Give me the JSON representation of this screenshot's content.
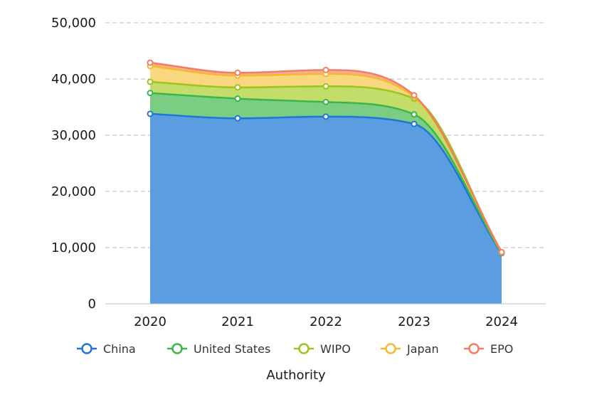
{
  "chart_data": {
    "type": "area",
    "stacked": true,
    "smooth": true,
    "categories": [
      "2020",
      "2021",
      "2022",
      "2023",
      "2024"
    ],
    "series": [
      {
        "name": "China",
        "color": "#1f77d4",
        "fill": "#5b9de0",
        "values": [
          33800,
          33000,
          33300,
          32000,
          9000
        ]
      },
      {
        "name": "United States",
        "color": "#3db54a",
        "fill": "#7ccd84",
        "values": [
          3700,
          3500,
          2600,
          1700,
          50
        ]
      },
      {
        "name": "WIPO",
        "color": "#9cc41c",
        "fill": "#c2dd6a",
        "values": [
          2000,
          2000,
          2800,
          2800,
          50
        ]
      },
      {
        "name": "Japan",
        "color": "#f5b92e",
        "fill": "#f9d77f",
        "values": [
          2800,
          2100,
          2200,
          300,
          50
        ]
      },
      {
        "name": "EPO",
        "color": "#f27d63",
        "fill": "#f7ad9c",
        "values": [
          600,
          500,
          700,
          300,
          50
        ]
      }
    ],
    "ylim": [
      0,
      50000
    ],
    "yticks": [
      "0",
      "10,000",
      "20,000",
      "30,000",
      "40,000",
      "50,000"
    ],
    "ytick_values": [
      0,
      10000,
      20000,
      30000,
      40000,
      50000
    ],
    "grid": true,
    "legend_position": "bottom",
    "xlabel": "Authority",
    "ylabel": "",
    "title": ""
  }
}
